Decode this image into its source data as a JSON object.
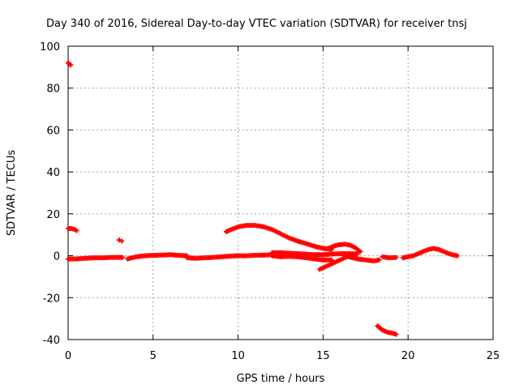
{
  "chart_data": {
    "type": "scatter",
    "title": "Day 340 of 2016, Sidereal Day-to-day VTEC variation (SDTVAR) for receiver tnsj",
    "xlabel": "GPS time / hours",
    "ylabel": "SDTVAR / TECUs",
    "xlim": [
      0,
      25
    ],
    "ylim": [
      -40,
      100
    ],
    "xticks": [
      "0",
      "5",
      "10",
      "15",
      "20",
      "25"
    ],
    "yticks": [
      "-40",
      "-20",
      "0",
      "20",
      "40",
      "60",
      "80",
      "100"
    ],
    "grid": true,
    "marker_color": "#ff0000",
    "series": [
      {
        "segments": [
          {
            "x": [
              0.0,
              0.15
            ],
            "y": [
              92,
              91
            ]
          },
          {
            "x": [
              0.0,
              0.2,
              0.4,
              0.5
            ],
            "y": [
              13,
              13,
              12.5,
              12
            ]
          },
          {
            "x": [
              3.0,
              3.15
            ],
            "y": [
              7.5,
              7
            ]
          },
          {
            "x": [
              0.0,
              0.5,
              1.0,
              1.5,
              2.0,
              2.5,
              3.0,
              3.2
            ],
            "y": [
              -1.5,
              -1.5,
              -1.2,
              -1.0,
              -1.0,
              -0.8,
              -0.8,
              -0.8
            ]
          },
          {
            "x": [
              3.5,
              4.0,
              4.5,
              5.0,
              5.5,
              6.0,
              6.5,
              7.0
            ],
            "y": [
              -1.5,
              -0.5,
              0.0,
              0.2,
              0.3,
              0.5,
              0.2,
              0.0
            ]
          },
          {
            "x": [
              7.0,
              7.5,
              8.0,
              8.5,
              9.0,
              9.5,
              10.0,
              10.5,
              11.0,
              11.5,
              12.0
            ],
            "y": [
              -1.0,
              -1.2,
              -1.0,
              -0.8,
              -0.5,
              -0.2,
              0.0,
              0.0,
              0.2,
              0.3,
              0.5
            ]
          },
          {
            "x": [
              9.3,
              9.6,
              10.0,
              10.5,
              11.0,
              11.5,
              12.0,
              12.5,
              13.0,
              13.5,
              14.0,
              14.5,
              15.0,
              15.5
            ],
            "y": [
              11.5,
              12.5,
              13.8,
              14.5,
              14.5,
              13.8,
              12.5,
              10.5,
              8.5,
              7.0,
              5.8,
              4.5,
              3.5,
              3.0
            ]
          },
          {
            "x": [
              12.0,
              12.5,
              13.0,
              13.5,
              14.0,
              14.5,
              15.0,
              15.5,
              16.0,
              16.5,
              17.0
            ],
            "y": [
              1.5,
              1.5,
              1.2,
              1.0,
              0.8,
              0.5,
              0.5,
              0.8,
              1.0,
              1.0,
              0.8
            ]
          },
          {
            "x": [
              12.0,
              12.5,
              13.0,
              13.5,
              14.0,
              14.5,
              15.0,
              15.5
            ],
            "y": [
              0.0,
              -0.5,
              -0.3,
              -0.5,
              -1.0,
              -1.5,
              -2.0,
              -2.0
            ]
          },
          {
            "x": [
              14.8,
              15.2,
              15.6,
              16.0,
              16.4,
              16.8,
              17.0
            ],
            "y": [
              -6.5,
              -5.0,
              -3.5,
              -2.0,
              -0.5,
              0.5,
              1.0
            ]
          },
          {
            "x": [
              15.3,
              15.7,
              16.0,
              16.3,
              16.6,
              16.9,
              17.2
            ],
            "y": [
              3.5,
              4.8,
              5.3,
              5.5,
              5.0,
              3.8,
              2.0
            ]
          },
          {
            "x": [
              16.5,
              17.0,
              17.5,
              18.0,
              18.3
            ],
            "y": [
              -0.5,
              -1.5,
              -2.0,
              -2.5,
              -2.0
            ]
          },
          {
            "x": [
              18.5,
              18.9,
              19.3
            ],
            "y": [
              -0.5,
              -1.0,
              -0.8
            ]
          },
          {
            "x": [
              19.7,
              20.0,
              20.3,
              20.6,
              20.9,
              21.2,
              21.5,
              21.8,
              22.1,
              22.4,
              22.7,
              22.9
            ],
            "y": [
              -1.0,
              -0.5,
              0.0,
              1.0,
              2.0,
              3.0,
              3.5,
              3.0,
              2.0,
              1.0,
              0.3,
              0.0
            ]
          },
          {
            "x": [
              18.2,
              18.5,
              18.8,
              19.1,
              19.3
            ],
            "y": [
              -33.5,
              -35.5,
              -36.5,
              -37.0,
              -37.5
            ]
          }
        ]
      }
    ]
  }
}
